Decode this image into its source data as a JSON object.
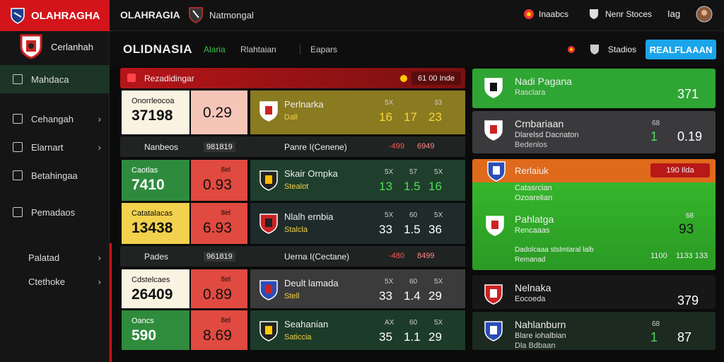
{
  "topbar": {
    "brand": "OLAHRAGHA",
    "site": "OLAHRAGIA",
    "league": "Natmongal",
    "links": [
      "Inaabcs",
      "Nenr Stoces"
    ],
    "lang": "Iag"
  },
  "sidebar": {
    "title": "Cerlanhah",
    "menu": [
      "Mahdaca",
      "Cehangah",
      "Elarnart",
      "Betahingaa",
      "Pemadaos",
      "Palatad",
      "Ctethoke"
    ]
  },
  "subheader": {
    "title": "OLIDNASIA",
    "tabs": [
      "Alaria",
      "Rlahtaian",
      "Eapars"
    ],
    "filter": "Stadios",
    "button": "REALFLAAAN"
  },
  "center": {
    "header": {
      "title": "Rezadidingar",
      "badge": "61 00 Inde"
    },
    "rows": [
      {
        "card_label": "Onorrleocoa",
        "card_value": "37198",
        "odds_label": "",
        "odds": "0.29",
        "team": "Perlnarka",
        "sub": "Dall",
        "top": [
          "5X",
          "",
          "33"
        ],
        "stats": [
          "16",
          "17",
          "23"
        ]
      },
      {
        "label": "Nanbeos",
        "code": "981819",
        "event": "Panre I(Cenene)",
        "change": "-499",
        "total": "6949"
      },
      {
        "card_label": "Caotlas",
        "card_value": "7410",
        "odds_label": "8el",
        "odds": "0.93",
        "team": "Skair Ornpka",
        "sub": "Stealot",
        "top": [
          "5X",
          "57",
          "5X"
        ],
        "stats": [
          "13",
          "1.5",
          "16"
        ]
      },
      {
        "card_label": "Catatalacas",
        "card_value": "13438",
        "odds_label": "8el",
        "odds": "6.93",
        "team": "Nlalh ernbia",
        "sub": "Stalcla",
        "top": [
          "5X",
          "60",
          "5X"
        ],
        "stats": [
          "33",
          "1.5",
          "36"
        ]
      },
      {
        "label": "Pades",
        "code": "961819",
        "event": "Uerna I(Cectane)",
        "change": "-480",
        "total": "8499"
      },
      {
        "card_label": "Cdstelcaes",
        "card_value": "26409",
        "odds_label": "8el",
        "odds": "0.89",
        "team": "Deult lamada",
        "sub": "Stell",
        "top": [
          "5X",
          "60",
          "5X"
        ],
        "stats": [
          "33",
          "1.4",
          "29"
        ]
      },
      {
        "card_label": "Oancs",
        "card_value": "590",
        "odds_label": "8el",
        "odds": "8.69",
        "team": "Seahanian",
        "sub": "Saticcia",
        "top": [
          "AX",
          "60",
          "5X"
        ],
        "stats": [
          "35",
          "1.1",
          "29"
        ]
      }
    ]
  },
  "right": {
    "cards": [
      {
        "name": "Nadi Pagana",
        "sub": "Rasclara",
        "top": "",
        "stat_a": "",
        "stat_b": "371"
      },
      {
        "name": "Crnbariaan",
        "sub": "Dlarelsd Dacnaton",
        "sub2": "Bedenlos",
        "top": "68",
        "stat_a": "1",
        "stat_b": "0.19"
      }
    ],
    "featured": {
      "title": "Rerlaiuk",
      "badge": "190 Ilda",
      "lines": [
        "Catasrcian",
        "Ozoarelian"
      ],
      "team": "Pahlatga",
      "sub": "Rencaaas",
      "top": "68",
      "stat": "93",
      "note": "Dadolcaaa stslmtaral lalb",
      "note_sub": "Remanad",
      "foot_a": "1100",
      "foot_b": "1133 133"
    },
    "cards_bottom": [
      {
        "name": "Nelnaka",
        "sub": "Eocoeda",
        "top": "",
        "stat_a": "",
        "stat_b": "379"
      },
      {
        "name": "Nahlanburn",
        "sub": "Blare iohalbian",
        "sub2": "Dla Bdbaan",
        "top": "68",
        "stat_a": "1",
        "stat_b": "87"
      }
    ]
  }
}
